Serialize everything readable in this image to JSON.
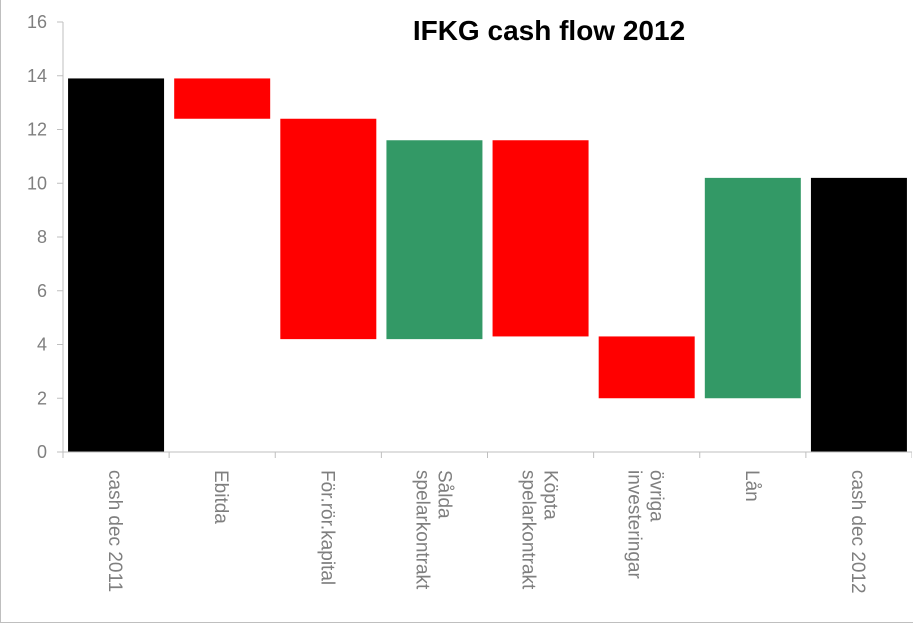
{
  "chart_data": {
    "type": "bar",
    "subtype": "waterfall",
    "title": "IFKG cash flow 2012",
    "xlabel": "",
    "ylabel": "",
    "ylim": [
      0,
      16
    ],
    "yticks": [
      0,
      2,
      4,
      6,
      8,
      10,
      12,
      14,
      16
    ],
    "grid": false,
    "legend": "none",
    "categories": [
      [
        "cash dec 2011"
      ],
      [
        "Ebitda"
      ],
      [
        "För.rör.kapital"
      ],
      [
        "Sålda",
        "spelarkontrakt"
      ],
      [
        "Köpta",
        "spelarkontrakt"
      ],
      [
        "övriga",
        "investeringar"
      ],
      [
        "Lån"
      ],
      [
        "cash dec 2012"
      ]
    ],
    "bars": [
      {
        "start": 0,
        "end": 13.9,
        "kind": "total"
      },
      {
        "start": 13.9,
        "end": 12.4,
        "kind": "decrease"
      },
      {
        "start": 12.4,
        "end": 4.2,
        "kind": "decrease"
      },
      {
        "start": 4.2,
        "end": 11.6,
        "kind": "increase"
      },
      {
        "start": 11.6,
        "end": 4.3,
        "kind": "decrease"
      },
      {
        "start": 4.3,
        "end": 2.0,
        "kind": "decrease"
      },
      {
        "start": 2.0,
        "end": 10.2,
        "kind": "increase"
      },
      {
        "start": 0,
        "end": 10.2,
        "kind": "total"
      }
    ],
    "colors": {
      "total": "#000000",
      "decrease": "#ff0000",
      "increase": "#339966",
      "axis": "#bfbfbf",
      "text": "#7f7f7f"
    }
  }
}
